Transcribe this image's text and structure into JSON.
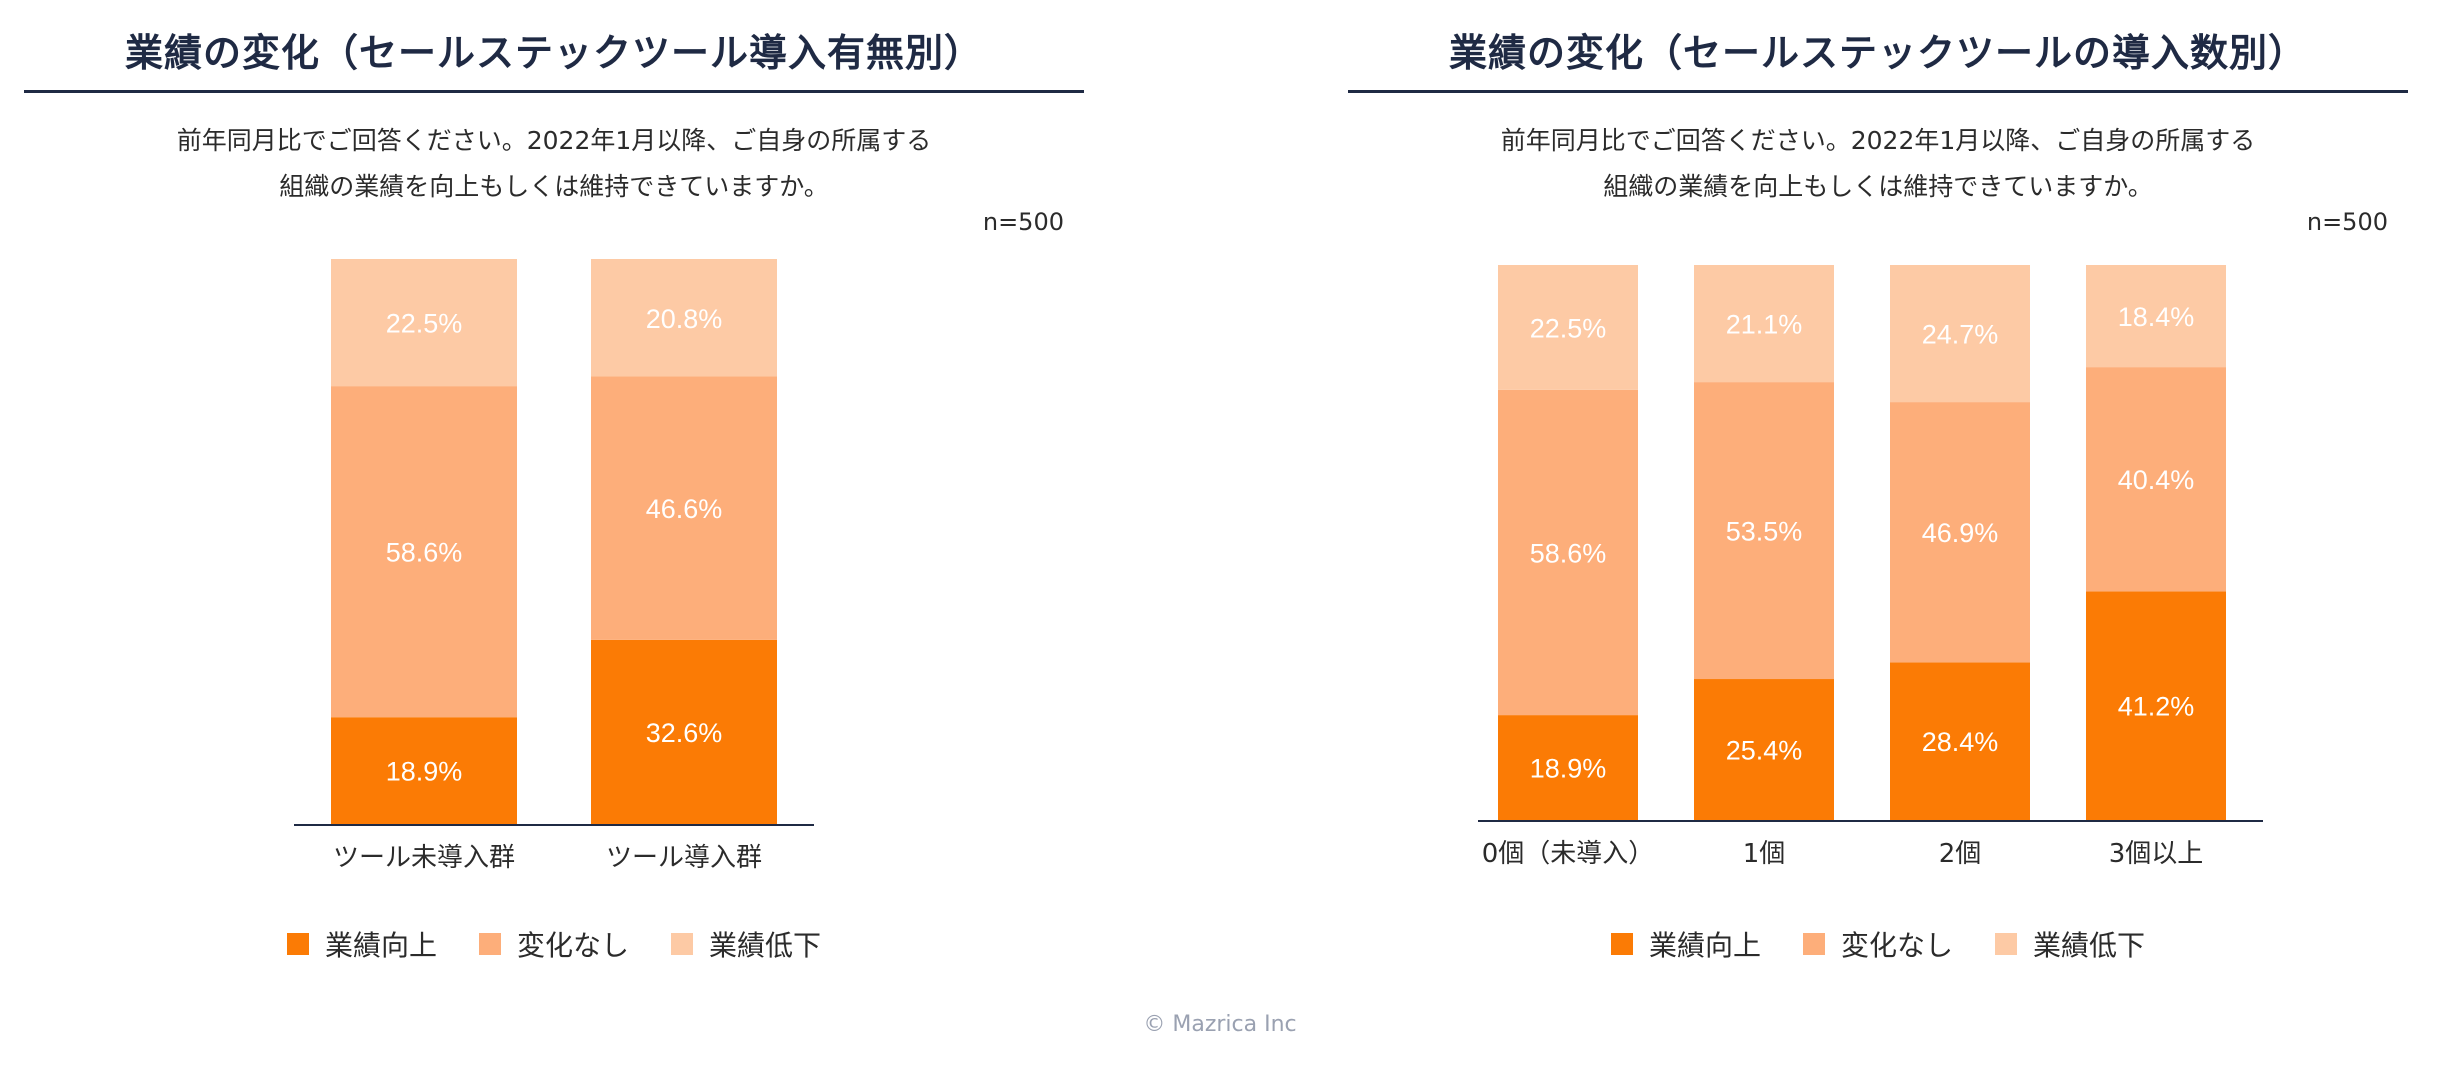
{
  "colors": {
    "up": "#fb7b05",
    "flat": "#fdae7a",
    "down": "#fdcaa5",
    "accent": "#1f2a44"
  },
  "chart_data": [
    {
      "type": "bar",
      "stacked": true,
      "title": "業績の変化（セールステックツール導入有無別）",
      "subtitle": [
        "前年同月比でご回答ください。2022年1月以降、ご自身の所属する",
        "組織の業績を向上もしくは維持できていますか。"
      ],
      "sample": "n=500",
      "categories": [
        "ツール未導入群",
        "ツール導入群"
      ],
      "series": [
        {
          "name": "業績向上",
          "values": [
            18.9,
            32.6
          ]
        },
        {
          "name": "変化なし",
          "values": [
            58.6,
            46.6
          ]
        },
        {
          "name": "業績低下",
          "values": [
            22.5,
            20.8
          ]
        }
      ],
      "ylim": [
        0,
        100
      ],
      "legend": "bottom"
    },
    {
      "type": "bar",
      "stacked": true,
      "title": "業績の変化（セールステックツールの導入数別）",
      "subtitle": [
        "前年同月比でご回答ください。2022年1月以降、ご自身の所属する",
        "組織の業績を向上もしくは維持できていますか。"
      ],
      "sample": "n=500",
      "categories": [
        "0個（未導入）",
        "1個",
        "2個",
        "3個以上"
      ],
      "series": [
        {
          "name": "業績向上",
          "values": [
            18.9,
            25.4,
            28.4,
            41.2
          ]
        },
        {
          "name": "変化なし",
          "values": [
            58.6,
            53.5,
            46.9,
            40.4
          ]
        },
        {
          "name": "業績低下",
          "values": [
            22.5,
            21.1,
            24.7,
            18.4
          ]
        }
      ],
      "ylim": [
        0,
        100
      ],
      "legend": "bottom"
    }
  ],
  "footer": {
    "copyright": "© Mazrica Inc"
  }
}
